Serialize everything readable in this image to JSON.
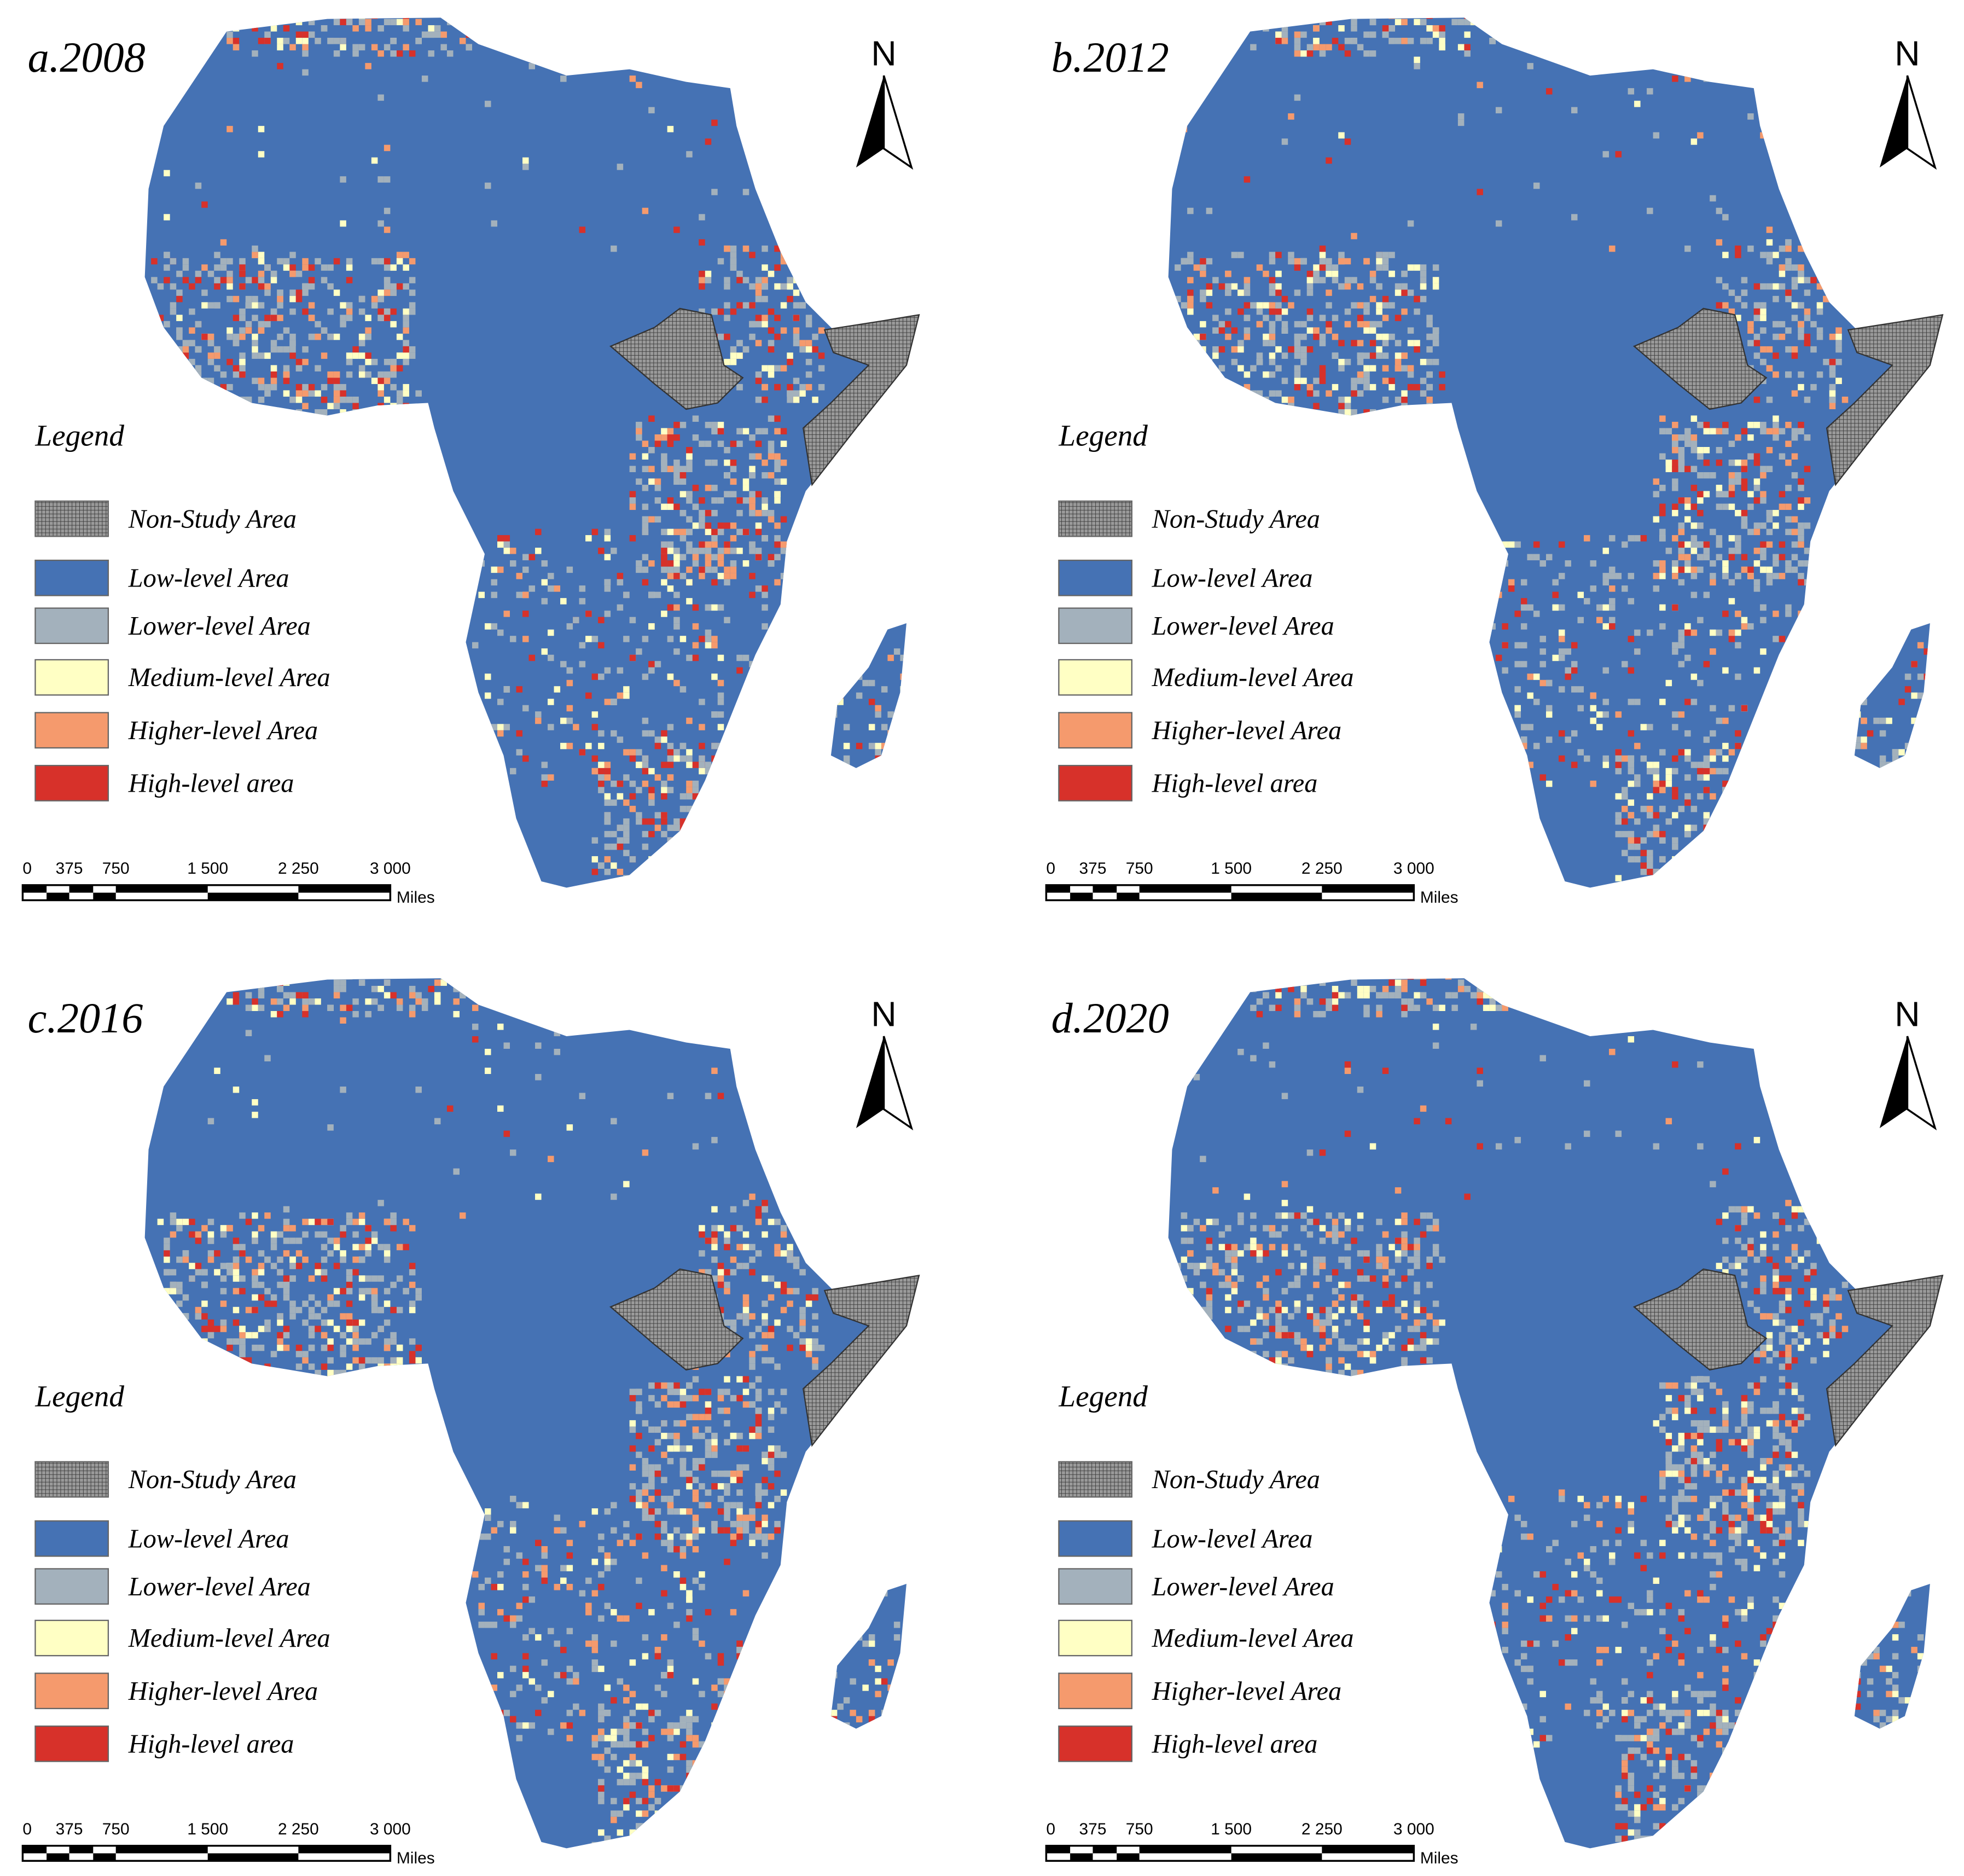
{
  "panels": [
    {
      "title": "a.2008",
      "north": "N",
      "legend": {
        "title": "Legend",
        "items": [
          "Non-Study Area",
          "Low-level Area",
          "Lower-level Area",
          "Medium-level Area",
          "Higher-level Area",
          "High-level area"
        ]
      },
      "scale": {
        "ticks": [
          "0",
          "375",
          "750",
          "1 500",
          "2 250",
          "3 000"
        ],
        "unit": "Miles"
      }
    },
    {
      "title": "b.2012",
      "north": "N",
      "legend": {
        "title": "Legend",
        "items": [
          "Non-Study Area",
          "Low-level Area",
          "Lower-level Area",
          "Medium-level Area",
          "Higher-level Area",
          "High-level area"
        ]
      },
      "scale": {
        "ticks": [
          "0",
          "375",
          "750",
          "1 500",
          "2 250",
          "3 000"
        ],
        "unit": "Miles"
      }
    },
    {
      "title": "c.2016",
      "north": "N",
      "legend": {
        "title": "Legend",
        "items": [
          "Non-Study Area",
          "Low-level Area",
          "Lower-level Area",
          "Medium-level Area",
          "Higher-level Area",
          "High-level area"
        ]
      },
      "scale": {
        "ticks": [
          "0",
          "375",
          "750",
          "1 500",
          "2 250",
          "3 000"
        ],
        "unit": "Miles"
      }
    },
    {
      "title": "d.2020",
      "north": "N",
      "legend": {
        "title": "Legend",
        "items": [
          "Non-Study Area",
          "Low-level Area",
          "Lower-level Area",
          "Medium-level Area",
          "Higher-level Area",
          "High-level area"
        ]
      },
      "scale": {
        "ticks": [
          "0",
          "375",
          "750",
          "1 500",
          "2 250",
          "3 000"
        ],
        "unit": "Miles"
      }
    }
  ]
}
